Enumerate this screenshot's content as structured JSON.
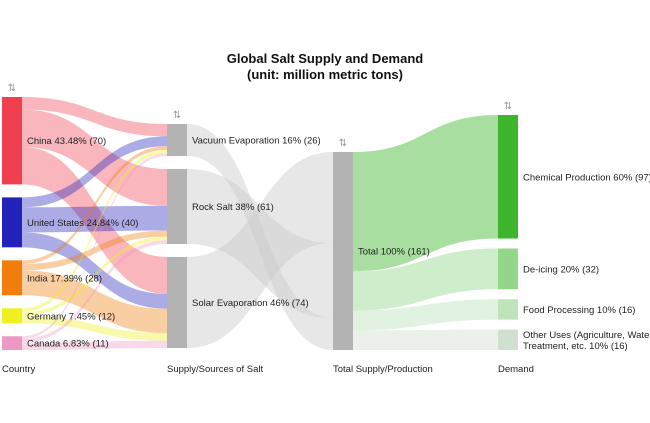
{
  "chart_data": {
    "type": "sankey",
    "title": "Global Salt Supply and Demand",
    "subtitle": "(unit: million metric tons)",
    "columns": [
      "Country",
      "Supply/Sources of Salt",
      "Total Supply/Production",
      "Demand"
    ],
    "sort_glyph": "⇅",
    "nodes": [
      {
        "id": "china",
        "column": 0,
        "label": "China 43.48% (70)",
        "value": 70,
        "color": "#f0404f"
      },
      {
        "id": "us",
        "column": 0,
        "label": "United States 24.84% (40)",
        "value": 40,
        "color": "#2222bb"
      },
      {
        "id": "india",
        "column": 0,
        "label": "India 17.39% (28)",
        "value": 28,
        "color": "#f27d0c"
      },
      {
        "id": "germany",
        "column": 0,
        "label": "Germany 7.45% (12)",
        "value": 12,
        "color": "#f0f020"
      },
      {
        "id": "canada",
        "column": 0,
        "label": "Canada 6.83% (11)",
        "value": 11,
        "color": "#ee99c4"
      },
      {
        "id": "vacuum",
        "column": 1,
        "label": "Vacuum Evaporation 16% (26)",
        "value": 26,
        "color": "#b3b3b3"
      },
      {
        "id": "rock",
        "column": 1,
        "label": "Rock Salt 38% (61)",
        "value": 61,
        "color": "#b3b3b3"
      },
      {
        "id": "solar",
        "column": 1,
        "label": "Solar Evaporation 46% (74)",
        "value": 74,
        "color": "#b3b3b3"
      },
      {
        "id": "total",
        "column": 2,
        "label": "Total 100% (161)",
        "value": 161,
        "color": "#b3b3b3"
      },
      {
        "id": "chemical",
        "column": 3,
        "label": "Chemical Production 60% (97)",
        "value": 97,
        "color": "#3db52c"
      },
      {
        "id": "deicing",
        "column": 3,
        "label": "De-icing 20% (32)",
        "value": 32,
        "color": "#92d68a"
      },
      {
        "id": "food",
        "column": 3,
        "label": "Food Processing 10% (16)",
        "value": 16,
        "color": "#bfe3bb"
      },
      {
        "id": "other",
        "column": 3,
        "label": [
          "Other Uses (Agriculture, Water",
          "Treatment, etc. 10% (16)"
        ],
        "value": 16,
        "color": "#cfe0cf"
      }
    ],
    "links": [
      {
        "source": "china",
        "target": "vacuum",
        "value": 10
      },
      {
        "source": "china",
        "target": "rock",
        "value": 30
      },
      {
        "source": "china",
        "target": "solar",
        "value": 30
      },
      {
        "source": "us",
        "target": "vacuum",
        "value": 8
      },
      {
        "source": "us",
        "target": "rock",
        "value": 20
      },
      {
        "source": "us",
        "target": "solar",
        "value": 12
      },
      {
        "source": "india",
        "target": "vacuum",
        "value": 3
      },
      {
        "source": "india",
        "target": "rock",
        "value": 5
      },
      {
        "source": "india",
        "target": "solar",
        "value": 20
      },
      {
        "source": "germany",
        "target": "vacuum",
        "value": 3
      },
      {
        "source": "germany",
        "target": "rock",
        "value": 3
      },
      {
        "source": "germany",
        "target": "solar",
        "value": 6
      },
      {
        "source": "canada",
        "target": "vacuum",
        "value": 2
      },
      {
        "source": "canada",
        "target": "rock",
        "value": 3
      },
      {
        "source": "canada",
        "target": "solar",
        "value": 6
      },
      {
        "source": "china",
        "target": "total",
        "via": [
          "vacuum",
          "rock",
          "solar"
        ],
        "value": 0
      },
      {
        "source": "total",
        "target": "chemical",
        "value": 97
      },
      {
        "source": "total",
        "target": "deicing",
        "value": 32
      },
      {
        "source": "total",
        "target": "food",
        "value": 16
      },
      {
        "source": "total",
        "target": "other",
        "value": 16
      }
    ]
  }
}
